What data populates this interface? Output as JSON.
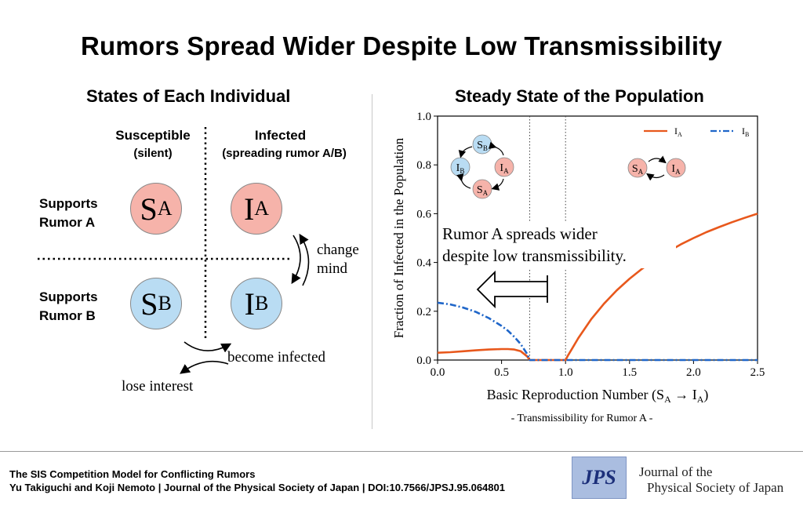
{
  "title": "Rumors Spread Wider Despite Low Transmissibility",
  "left_panel": {
    "title": "States of Each Individual",
    "col_susceptible": "Susceptible",
    "col_susceptible_sub": "(silent)",
    "col_infected": "Infected",
    "col_infected_sub": "(spreading rumor A/B)",
    "row_a_line1": "Supports",
    "row_a_line2": "Rumor A",
    "row_b_line1": "Supports",
    "row_b_line2": "Rumor B",
    "states": {
      "sa": "S",
      "sa_sub": "A",
      "ia": "I",
      "ia_sub": "A",
      "sb": "S",
      "sb_sub": "B",
      "ib": "I",
      "ib_sub": "B"
    },
    "change_mind_1": "change",
    "change_mind_2": "mind",
    "become_infected": "become infected",
    "lose_interest": "lose interest"
  },
  "right_panel": {
    "title": "Steady State of the Population"
  },
  "chart_data": {
    "type": "line",
    "xlabel": "Basic Reproduction Number (S_A → I_A)",
    "xlabel_parts": {
      "main": "Basic Reproduction Number (S",
      "sub1": "A",
      "arrow": " → I",
      "sub2": "A",
      "close": ")"
    },
    "xsubtitle": "- Transmissibility for Rumor A -",
    "ylabel": "Fraction of Infected in the Population",
    "xlim": [
      0.0,
      2.5
    ],
    "ylim": [
      0.0,
      1.0
    ],
    "xticks": [
      "0.0",
      "0.5",
      "1.0",
      "1.5",
      "2.0",
      "2.5"
    ],
    "yticks": [
      "0.0",
      "0.2",
      "0.4",
      "0.6",
      "0.8",
      "1.0"
    ],
    "grid": false,
    "legend_position": "top-right",
    "vlines": [
      0.72,
      1.0
    ],
    "series": [
      {
        "name": "I_A",
        "label": "I",
        "sub": "A",
        "color": "#e8581c",
        "style": "solid",
        "x": [
          0.0,
          0.1,
          0.2,
          0.3,
          0.4,
          0.5,
          0.55,
          0.6,
          0.65,
          0.7,
          0.72,
          0.8,
          0.9,
          1.0,
          1.02,
          1.05,
          1.1,
          1.2,
          1.3,
          1.4,
          1.5,
          1.6,
          1.7,
          1.8,
          1.9,
          2.0,
          2.1,
          2.2,
          2.3,
          2.4,
          2.5
        ],
        "y": [
          0.03,
          0.032,
          0.036,
          0.04,
          0.043,
          0.045,
          0.045,
          0.043,
          0.036,
          0.015,
          0.0,
          0.0,
          0.0,
          0.0,
          0.02,
          0.046,
          0.09,
          0.167,
          0.231,
          0.286,
          0.333,
          0.375,
          0.412,
          0.444,
          0.474,
          0.5,
          0.524,
          0.545,
          0.565,
          0.583,
          0.6
        ]
      },
      {
        "name": "I_B",
        "label": "I",
        "sub": "B",
        "color": "#1f66c9",
        "style": "dashdot",
        "x": [
          0.0,
          0.1,
          0.2,
          0.3,
          0.4,
          0.5,
          0.55,
          0.6,
          0.65,
          0.7,
          0.72,
          0.8,
          0.9,
          1.0,
          1.5,
          2.0,
          2.5
        ],
        "y": [
          0.235,
          0.228,
          0.215,
          0.197,
          0.172,
          0.14,
          0.12,
          0.095,
          0.065,
          0.025,
          0.0,
          0.0,
          0.0,
          0.0,
          0.0,
          0.0,
          0.0
        ]
      }
    ],
    "annotation_line1": "Rumor A spreads wider",
    "annotation_line2": "despite low transmissibility.",
    "inset_left": {
      "top": "S",
      "top_sub": "B",
      "left": "I",
      "left_sub": "B",
      "right": "I",
      "right_sub": "A",
      "bottom": "S",
      "bottom_sub": "A"
    },
    "inset_right": {
      "left": "S",
      "left_sub": "A",
      "right": "I",
      "right_sub": "A"
    }
  },
  "footer": {
    "paper_title": "The SIS Competition Model for Conflicting Rumors",
    "authors_line": "Yu Takiguchi and Koji Nemoto | Journal of the Physical Society of Japan | DOI:10.7566/JPSJ.95.064801",
    "logo_text": "JPS",
    "journal_line1": "Journal of the",
    "journal_line2": "Physical Society of Japan"
  },
  "colors": {
    "pink": "#f6b3aa",
    "blue": "#b9dcf3",
    "orange": "#e8581c",
    "dashblue": "#1f66c9"
  }
}
